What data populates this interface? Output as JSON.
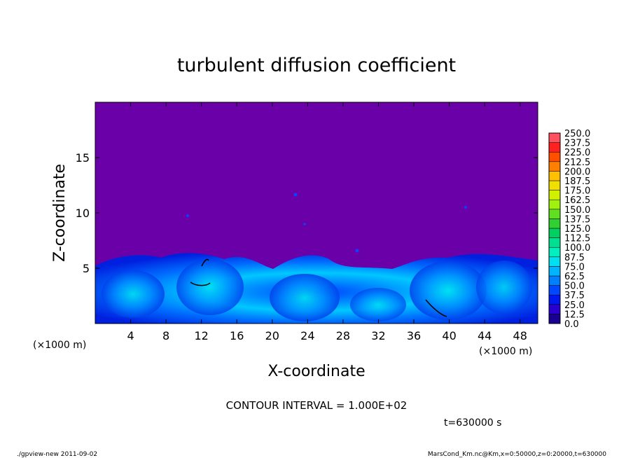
{
  "chart_data": {
    "type": "heatmap",
    "title": "turbulent diffusion coefficient",
    "xlabel": "X-coordinate",
    "ylabel": "Z-coordinate",
    "x_unit": "(×1000 m)",
    "y_unit": "(×1000 m)",
    "xlim": [
      0,
      50
    ],
    "ylim": [
      0,
      20
    ],
    "x_ticks": [
      "4",
      "8",
      "12",
      "16",
      "20",
      "24",
      "28",
      "32",
      "36",
      "40",
      "44",
      "48"
    ],
    "y_ticks": [
      "5",
      "10",
      "15"
    ],
    "colorbar": {
      "levels": [
        "0.0",
        "12.5",
        "25.0",
        "37.5",
        "50.0",
        "62.5",
        "75.0",
        "87.5",
        "100.0",
        "112.5",
        "125.0",
        "137.5",
        "150.0",
        "162.5",
        "175.0",
        "187.5",
        "200.0",
        "212.5",
        "225.0",
        "237.5",
        "250.0"
      ],
      "colors": [
        "#1a0090",
        "#2a00d0",
        "#0018f0",
        "#0048ff",
        "#0080ff",
        "#00b4ff",
        "#00e0f0",
        "#00f0c0",
        "#00e090",
        "#00d060",
        "#30d030",
        "#60e020",
        "#a0f010",
        "#d0f000",
        "#f0e000",
        "#ffc000",
        "#ff8000",
        "#ff5000",
        "#ff2020",
        "#ff5060"
      ]
    },
    "background_color": "#6a00a8",
    "boundary_layer_top_km": 5,
    "contour_interval": "CONTOUR INTERVAL = 1.000E+02",
    "time": "t=630000 s"
  },
  "footer": {
    "left": "./gpview-new  2011-09-02",
    "right": "MarsCond_Km.nc@Km,x=0:50000,z=0:20000,t=630000"
  }
}
